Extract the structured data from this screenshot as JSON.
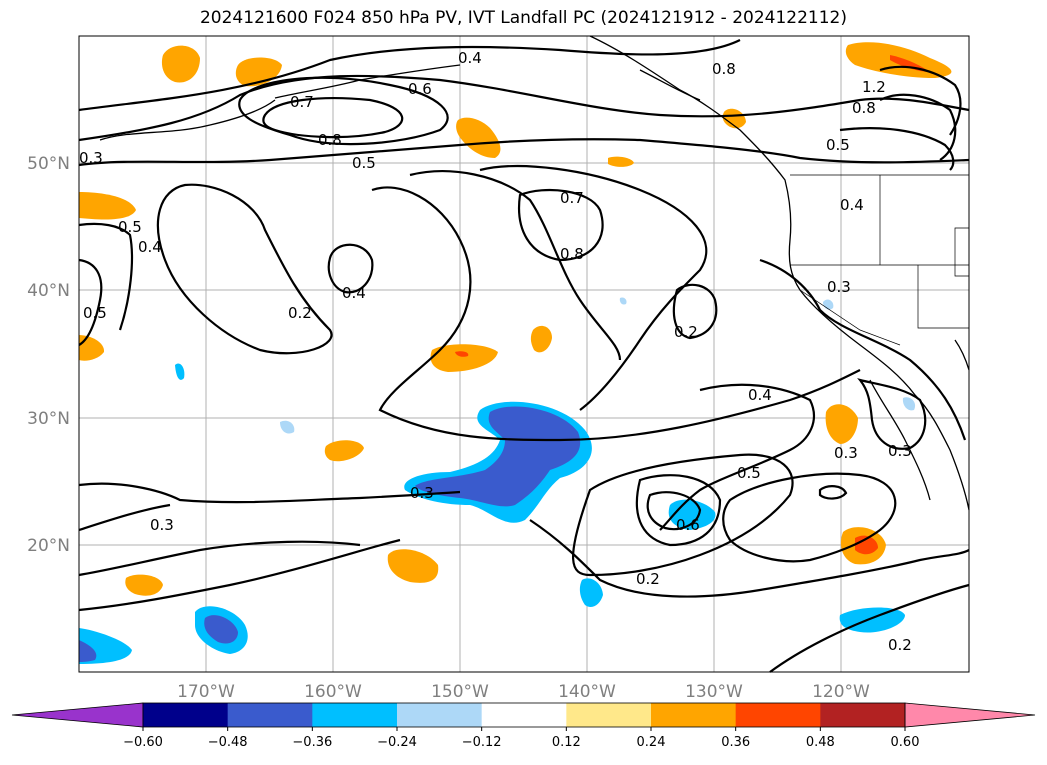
{
  "title": "2024121600 F024 850 hPa PV, IVT Landfall PC (2024121912 - 2024122112)",
  "map": {
    "lat_labels": [
      "50°N",
      "40°N",
      "30°N",
      "20°N"
    ],
    "lon_labels": [
      "170°W",
      "160°W",
      "150°W",
      "140°W",
      "130°W",
      "120°W"
    ],
    "contour_labels": [
      "0.4",
      "0.6",
      "0.7",
      "0.8",
      "0.8",
      "0.3",
      "0.5",
      "0.5",
      "0.5",
      "0.4",
      "0.7",
      "0.8",
      "0.4",
      "0.5",
      "0.2",
      "0.2",
      "0.3",
      "0.4",
      "0.5",
      "0.3",
      "0.3",
      "0.3",
      "0.3",
      "0.6",
      "0.2",
      "0.2",
      "1.2",
      "0.8",
      "0.4"
    ]
  },
  "colorbar": {
    "levels": [
      "−0.60",
      "−0.48",
      "−0.36",
      "−0.24",
      "−0.12",
      "0.12",
      "0.24",
      "0.36",
      "0.48",
      "0.60"
    ],
    "colors": [
      "#9933cc",
      "#00008b",
      "#3a5bcd",
      "#00bfff",
      "#add8f7",
      "#ffffff",
      "#ffe88a",
      "#ffa500",
      "#ff4500",
      "#b22222",
      "#ff88aa"
    ]
  }
}
